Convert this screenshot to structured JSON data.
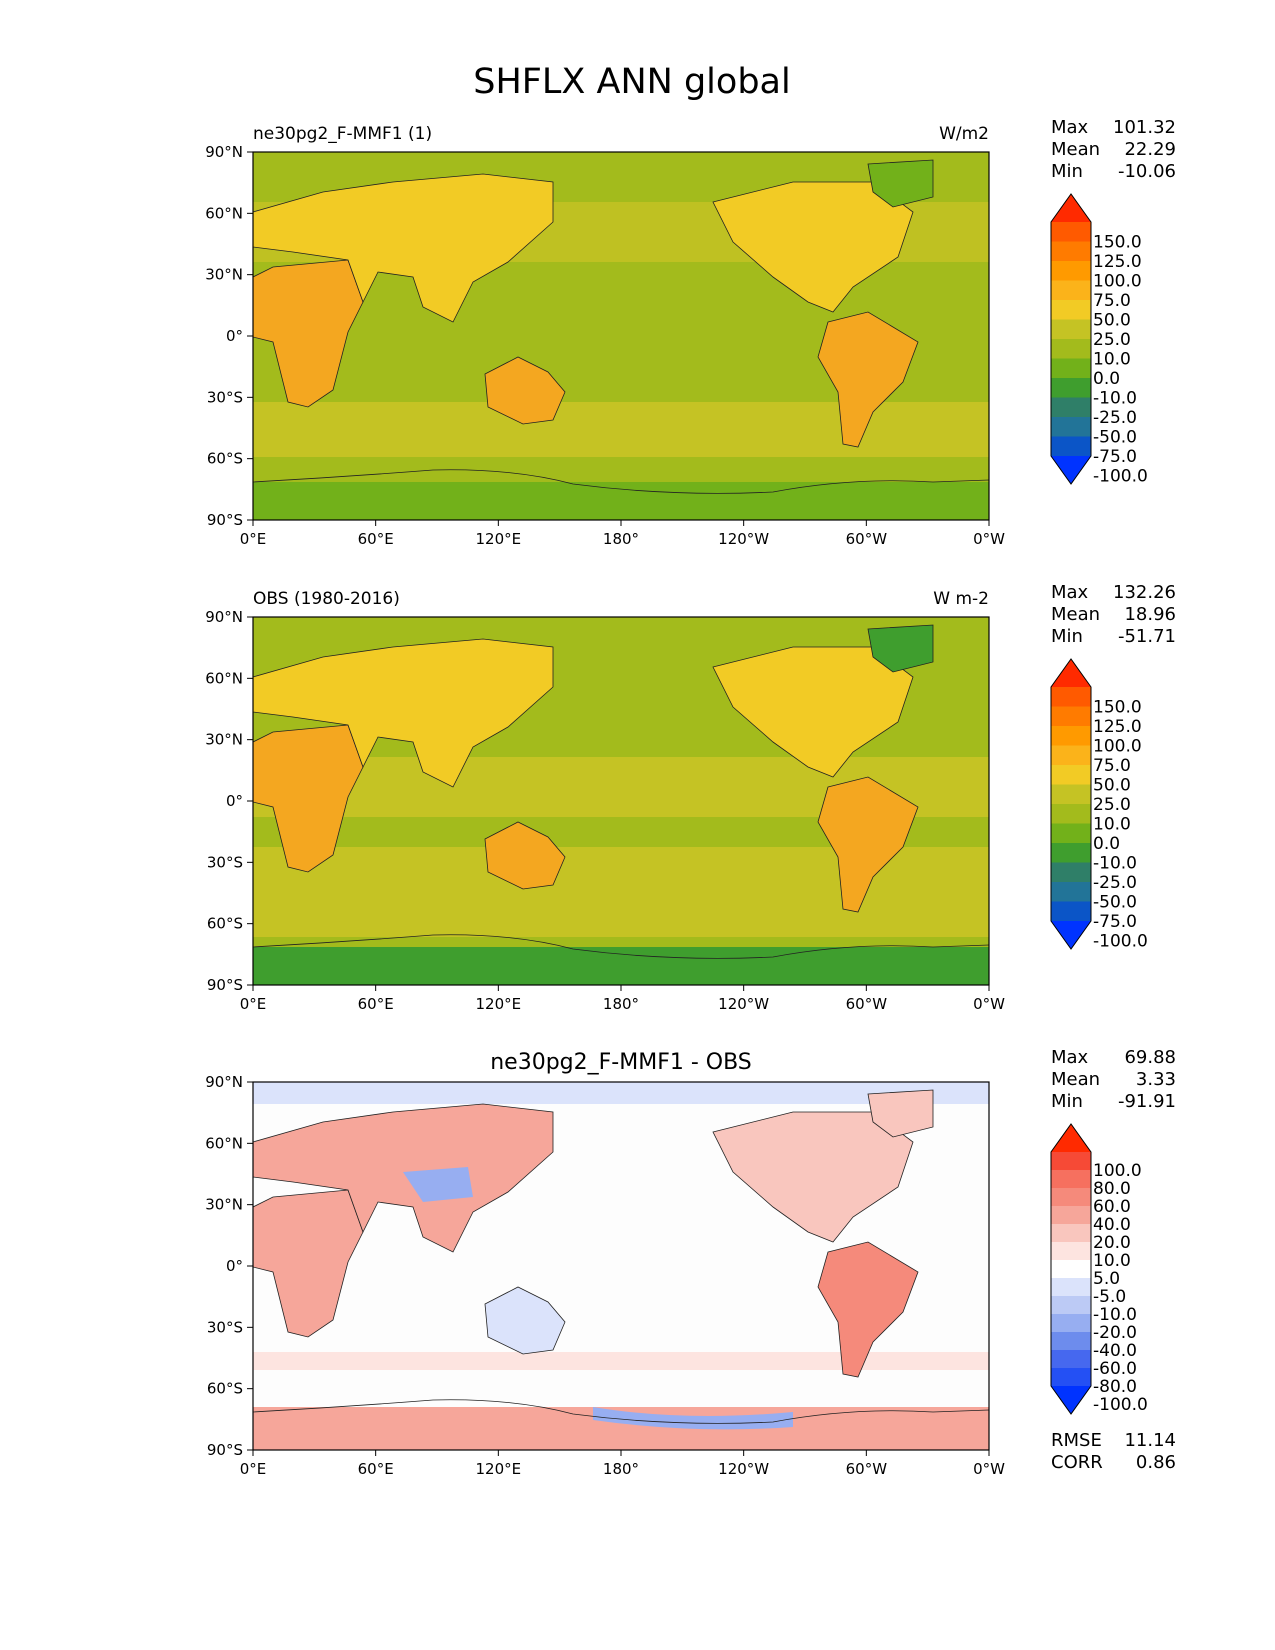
{
  "figure_title": "SHFLX ANN global",
  "lat_ticks": [
    "90°N",
    "60°N",
    "30°N",
    "0°",
    "30°S",
    "60°S",
    "90°S"
  ],
  "lon_ticks": [
    "0°E",
    "60°E",
    "120°E",
    "180°",
    "120°W",
    "60°W",
    "0°W"
  ],
  "colors": {
    "ocean_test": "#a3bb1c",
    "ocean_obs": "#a3bb1c",
    "land_warm": "#f4a720",
    "polar_test": "#72b11a",
    "polar_obs": "#3f9e2e",
    "diff_bg": "#fdfdfd",
    "diff_pos": "#f4a196",
    "diff_neg": "#b4c3f1"
  },
  "chart_data": [
    {
      "type": "heatmap",
      "panel_title": "ne30pg2_F-MMF1 (1)",
      "units": "W/m2",
      "stats": [
        {
          "label": "Max",
          "value": "101.32"
        },
        {
          "label": "Mean",
          "value": "22.29"
        },
        {
          "label": "Min",
          "value": "-10.06"
        }
      ],
      "colorbar": {
        "levels": [
          "150.0",
          "125.0",
          "100.0",
          "75.0",
          "50.0",
          "25.0",
          "10.0",
          "0.0",
          "-10.0",
          "-25.0",
          "-50.0",
          "-75.0",
          "-100.0"
        ],
        "colors": [
          "#ff2a00",
          "#ff5a00",
          "#ff7b00",
          "#ff9a00",
          "#fbb31a",
          "#f2cb25",
          "#c5c324",
          "#a3bb1c",
          "#72b11a",
          "#3f9e2e",
          "#2f7f68",
          "#227498",
          "#0b55c7",
          "#0033ff"
        ]
      },
      "xlim": [
        0,
        360
      ],
      "ylim": [
        -90,
        90
      ]
    },
    {
      "type": "heatmap",
      "panel_title": "OBS (1980-2016)",
      "units": "W m-2",
      "stats": [
        {
          "label": "Max",
          "value": "132.26"
        },
        {
          "label": "Mean",
          "value": "18.96"
        },
        {
          "label": "Min",
          "value": "-51.71"
        }
      ],
      "colorbar": {
        "levels": [
          "150.0",
          "125.0",
          "100.0",
          "75.0",
          "50.0",
          "25.0",
          "10.0",
          "0.0",
          "-10.0",
          "-25.0",
          "-50.0",
          "-75.0",
          "-100.0"
        ],
        "colors": [
          "#ff2a00",
          "#ff5a00",
          "#ff7b00",
          "#ff9a00",
          "#fbb31a",
          "#f2cb25",
          "#c5c324",
          "#a3bb1c",
          "#72b11a",
          "#3f9e2e",
          "#2f7f68",
          "#227498",
          "#0b55c7",
          "#0033ff"
        ]
      },
      "xlim": [
        0,
        360
      ],
      "ylim": [
        -90,
        90
      ]
    },
    {
      "type": "heatmap",
      "panel_title": "ne30pg2_F-MMF1 - OBS",
      "units": "",
      "stats": [
        {
          "label": "Max",
          "value": "69.88"
        },
        {
          "label": "Mean",
          "value": "3.33"
        },
        {
          "label": "Min",
          "value": "-91.91"
        }
      ],
      "colorbar": {
        "levels": [
          "100.0",
          "80.0",
          "60.0",
          "40.0",
          "20.0",
          "10.0",
          "5.0",
          "-5.0",
          "-10.0",
          "-20.0",
          "-40.0",
          "-60.0",
          "-80.0",
          "-100.0"
        ],
        "colors": [
          "#ff2a00",
          "#f64a36",
          "#f6705f",
          "#f58a7b",
          "#f6a69a",
          "#f9c6be",
          "#fde4e0",
          "#ffffff",
          "#dbe3fb",
          "#bccaf5",
          "#97aef1",
          "#6d8ced",
          "#4668ef",
          "#2450f4",
          "#0033ff"
        ]
      },
      "metrics": [
        {
          "label": "RMSE",
          "value": "11.14"
        },
        {
          "label": "CORR",
          "value": "0.86"
        }
      ],
      "xlim": [
        0,
        360
      ],
      "ylim": [
        -90,
        90
      ]
    }
  ]
}
